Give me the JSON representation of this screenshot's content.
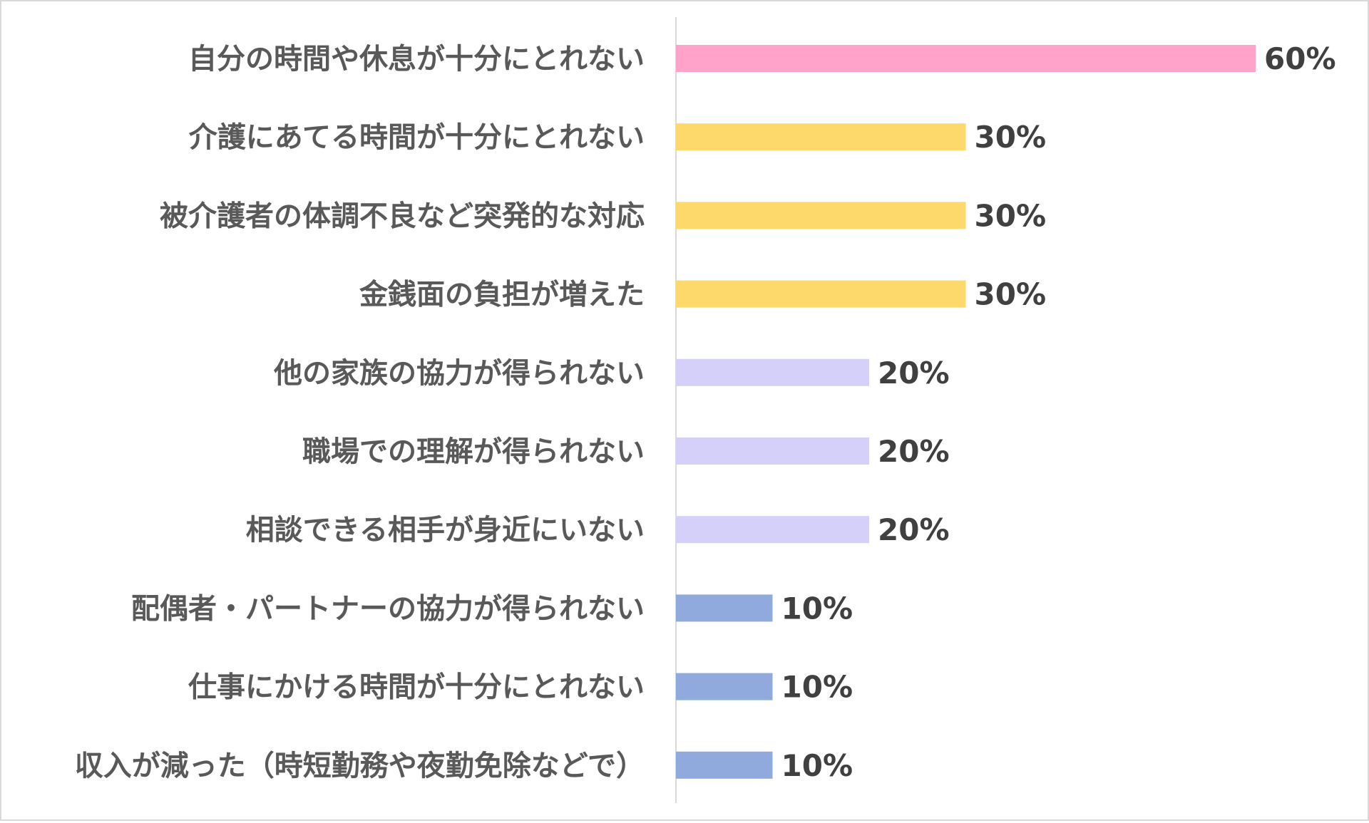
{
  "chart_data": {
    "type": "bar",
    "orientation": "horizontal",
    "title": "",
    "xlabel": "",
    "ylabel": "",
    "xlim": [
      0,
      60
    ],
    "grid": false,
    "legend": "none",
    "value_suffix": "%",
    "categories": [
      "自分の時間や休息が十分にとれない",
      "介護にあてる時間が十分にとれない",
      "被介護者の体調不良など突発的な対応",
      "金銭面の負担が増えた",
      "他の家族の協力が得られない",
      "職場での理解が得られない",
      "相談できる相手が身近にいない",
      "配偶者・パートナーの協力が得られない",
      "仕事にかける時間が十分にとれない",
      "収入が減った（時短勤務や夜勤免除などで）"
    ],
    "values": [
      60,
      30,
      30,
      30,
      20,
      20,
      20,
      10,
      10,
      10
    ],
    "value_labels": [
      "60%",
      "30%",
      "30%",
      "30%",
      "20%",
      "20%",
      "20%",
      "10%",
      "10%",
      "10%"
    ],
    "colors": [
      "#ffa3cb",
      "#fdd96b",
      "#fdd96b",
      "#fdd96b",
      "#d5d0fa",
      "#d5d0fa",
      "#d5d0fa",
      "#90aadd",
      "#90aadd",
      "#90aadd"
    ]
  }
}
